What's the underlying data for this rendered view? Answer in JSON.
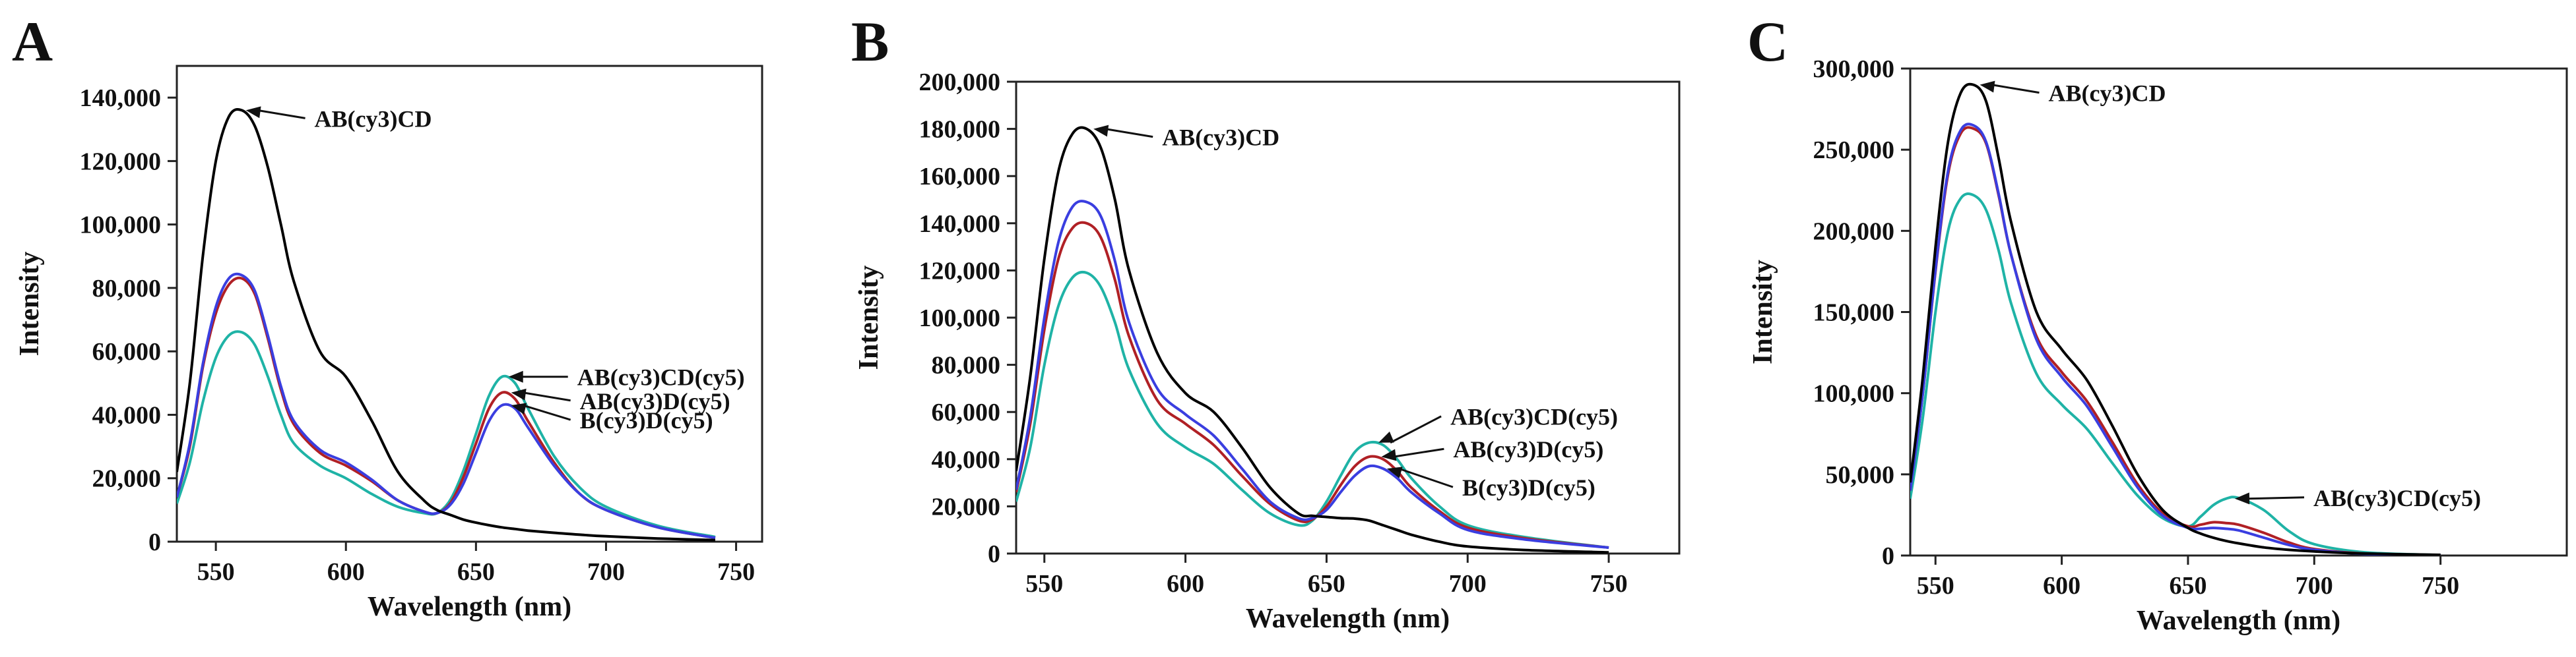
{
  "figure": {
    "panels": [
      "A",
      "B",
      "C"
    ]
  },
  "series_colors": {
    "AB(cy3)CD": "#000000",
    "AB(cy3)CD(cy5)": "#1fb3a6",
    "AB(cy3)D(cy5)": "#b02025",
    "B(cy3)D(cy5)": "#3a3ee0"
  },
  "chart_data": [
    {
      "type": "line",
      "panel": "A",
      "xlabel": "Wavelength (nm)",
      "ylabel": "Intensity",
      "xlim": [
        535,
        760
      ],
      "ylim": [
        0,
        150000
      ],
      "xticks": [
        550,
        600,
        650,
        700,
        750
      ],
      "xtick_labels": [
        "550",
        "600",
        "650",
        "700",
        "750"
      ],
      "yticks": [
        0,
        20000,
        40000,
        60000,
        80000,
        100000,
        120000,
        140000
      ],
      "ytick_labels": [
        "0",
        "20,000",
        "40,000",
        "60,000",
        "80,000",
        "100,000",
        "120,000",
        "140,000"
      ],
      "x": [
        535,
        540,
        545,
        550,
        555,
        560,
        565,
        570,
        575,
        580,
        590,
        600,
        610,
        620,
        630,
        635,
        640,
        645,
        650,
        655,
        660,
        665,
        670,
        680,
        690,
        700,
        720,
        742
      ],
      "series": [
        {
          "name": "AB(cy3)CD",
          "color": "#000000",
          "values": [
            22000,
            50000,
            90000,
            120000,
            134000,
            136000,
            131000,
            118000,
            100000,
            82000,
            60000,
            52000,
            38000,
            22000,
            13000,
            10000,
            8500,
            7000,
            6000,
            5200,
            4500,
            4000,
            3500,
            2800,
            2200,
            1700,
            1000,
            500
          ]
        },
        {
          "name": "AB(cy3)CD(cy5)",
          "color": "#1fb3a6",
          "values": [
            12000,
            25000,
            44000,
            58000,
            65000,
            66000,
            62000,
            52000,
            40000,
            31000,
            24000,
            20000,
            15000,
            11000,
            9000,
            9000,
            13000,
            22000,
            34000,
            46000,
            52000,
            50000,
            42000,
            27000,
            17000,
            11000,
            5000,
            1500
          ]
        },
        {
          "name": "AB(cy3)D(cy5)",
          "color": "#b02025",
          "values": [
            14000,
            30000,
            55000,
            72000,
            81000,
            83000,
            78000,
            64000,
            48000,
            37000,
            28000,
            24000,
            19000,
            13000,
            9500,
            9000,
            12000,
            20000,
            31000,
            42000,
            47000,
            45000,
            38000,
            25000,
            15000,
            10000,
            4500,
            1200
          ]
        },
        {
          "name": "B(cy3)D(cy5)",
          "color": "#3a3ee0",
          "values": [
            14000,
            31000,
            56000,
            74000,
            83000,
            84000,
            79000,
            65000,
            49000,
            38000,
            29000,
            25000,
            19500,
            13000,
            9500,
            9000,
            11500,
            18000,
            28000,
            38000,
            43000,
            42000,
            36000,
            24000,
            15000,
            10000,
            4500,
            1200
          ]
        }
      ],
      "annotations": [
        {
          "series": "AB(cy3)CD",
          "text": "AB(cy3)CD",
          "x": 560,
          "y": 136000
        },
        {
          "series": "AB(cy3)CD(cy5)",
          "text": "AB(cy3)CD(cy5)",
          "x": 661,
          "y": 52000
        },
        {
          "series": "AB(cy3)D(cy5)",
          "text": "AB(cy3)D(cy5)",
          "x": 662,
          "y": 47000
        },
        {
          "series": "B(cy3)D(cy5)",
          "text": "B(cy3)D(cy5)",
          "x": 662,
          "y": 43000
        }
      ]
    },
    {
      "type": "line",
      "panel": "B",
      "xlabel": "Wavelength (nm)",
      "ylabel": "Intensity",
      "xlim": [
        540,
        775
      ],
      "ylim": [
        0,
        200000
      ],
      "xticks": [
        550,
        600,
        650,
        700,
        750
      ],
      "xtick_labels": [
        "550",
        "600",
        "650",
        "700",
        "750"
      ],
      "yticks": [
        0,
        20000,
        40000,
        60000,
        80000,
        100000,
        120000,
        140000,
        160000,
        180000,
        200000
      ],
      "ytick_labels": [
        "0",
        "20,000",
        "40,000",
        "60,000",
        "80,000",
        "100,000",
        "120,000",
        "140,000",
        "160,000",
        "180,000",
        "200,000"
      ],
      "x": [
        540,
        545,
        550,
        555,
        560,
        565,
        570,
        575,
        580,
        590,
        600,
        610,
        620,
        630,
        640,
        645,
        650,
        655,
        660,
        665,
        670,
        675,
        680,
        690,
        700,
        720,
        750
      ],
      "series": [
        {
          "name": "AB(cy3)CD",
          "color": "#000000",
          "values": [
            35000,
            75000,
            125000,
            162000,
            178000,
            180000,
            172000,
            150000,
            120000,
            85000,
            68000,
            60000,
            45000,
            28000,
            17000,
            16000,
            15500,
            15000,
            14800,
            14000,
            12000,
            10000,
            8000,
            5000,
            3000,
            1500,
            500
          ]
        },
        {
          "name": "AB(cy3)CD(cy5)",
          "color": "#1fb3a6",
          "values": [
            22000,
            45000,
            80000,
            105000,
            117000,
            119000,
            113000,
            98000,
            78000,
            55000,
            45000,
            38000,
            27000,
            17000,
            12000,
            14000,
            22000,
            33000,
            43000,
            47000,
            46000,
            40000,
            32000,
            20000,
            12000,
            7000,
            2500
          ]
        },
        {
          "name": "AB(cy3)D(cy5)",
          "color": "#b02025",
          "values": [
            26000,
            55000,
            95000,
            125000,
            138000,
            140000,
            134000,
            116000,
            92000,
            65000,
            55000,
            46000,
            33000,
            21000,
            14000,
            14500,
            20000,
            29000,
            37000,
            41000,
            40000,
            35000,
            28000,
            18000,
            11000,
            6500,
            2500
          ]
        },
        {
          "name": "B(cy3)D(cy5)",
          "color": "#3a3ee0",
          "values": [
            27000,
            58000,
            100000,
            132000,
            147000,
            149000,
            143000,
            124000,
            98000,
            70000,
            59000,
            50000,
            36000,
            22000,
            15000,
            15000,
            18500,
            26000,
            33000,
            37000,
            36000,
            32000,
            26000,
            17000,
            10000,
            6000,
            2500
          ]
        }
      ],
      "annotations": [
        {
          "series": "AB(cy3)CD",
          "text": "AB(cy3)CD",
          "x": 566,
          "y": 180000
        },
        {
          "series": "AB(cy3)CD(cy5)",
          "text": "AB(cy3)CD(cy5)",
          "x": 667,
          "y": 47000
        },
        {
          "series": "AB(cy3)D(cy5)",
          "text": "AB(cy3)D(cy5)",
          "x": 668,
          "y": 41000
        },
        {
          "series": "B(cy3)D(cy5)",
          "text": "B(cy3)D(cy5)",
          "x": 670,
          "y": 36000
        }
      ]
    },
    {
      "type": "line",
      "panel": "C",
      "xlabel": "Wavelength (nm)",
      "ylabel": "Intensity",
      "xlim": [
        540,
        800
      ],
      "ylim": [
        0,
        300000
      ],
      "xticks": [
        550,
        600,
        650,
        700,
        750
      ],
      "xtick_labels": [
        "550",
        "600",
        "650",
        "700",
        "750"
      ],
      "yticks": [
        0,
        50000,
        100000,
        150000,
        200000,
        250000,
        300000
      ],
      "ytick_labels": [
        "0",
        "50,000",
        "100,000",
        "150,000",
        "200,000",
        "250,000",
        "300,000"
      ],
      "x": [
        540,
        545,
        550,
        555,
        560,
        565,
        570,
        575,
        580,
        590,
        600,
        610,
        620,
        630,
        640,
        650,
        655,
        660,
        665,
        670,
        680,
        690,
        700,
        720,
        750
      ],
      "series": [
        {
          "name": "AB(cy3)CD",
          "color": "#000000",
          "values": [
            45000,
            110000,
            190000,
            255000,
            285000,
            290000,
            280000,
            245000,
            205000,
            150000,
            127000,
            108000,
            80000,
            50000,
            28000,
            17000,
            13500,
            11000,
            9000,
            7500,
            5000,
            3500,
            2500,
            1200,
            400
          ]
        },
        {
          "name": "AB(cy3)CD(cy5)",
          "color": "#1fb3a6",
          "values": [
            35000,
            85000,
            150000,
            200000,
            220000,
            222000,
            213000,
            188000,
            155000,
            112000,
            93000,
            78000,
            57000,
            37000,
            23000,
            18000,
            24000,
            31000,
            35000,
            35500,
            28000,
            15000,
            7000,
            2000,
            300
          ]
        },
        {
          "name": "AB(cy3)D(cy5)",
          "color": "#b02025",
          "values": [
            40000,
            100000,
            175000,
            235000,
            260000,
            263000,
            254000,
            222000,
            185000,
            135000,
            113000,
            95000,
            70000,
            44000,
            26000,
            18000,
            19000,
            20500,
            20000,
            19000,
            14000,
            8000,
            4000,
            1200,
            200
          ]
        },
        {
          "name": "B(cy3)D(cy5)",
          "color": "#3a3ee0",
          "values": [
            40000,
            100000,
            176000,
            237000,
            262000,
            265000,
            255000,
            223000,
            185000,
            133000,
            110000,
            92000,
            67000,
            42000,
            24500,
            17000,
            16500,
            17000,
            16500,
            15500,
            11000,
            6500,
            3500,
            1000,
            200
          ]
        }
      ],
      "annotations": [
        {
          "series": "AB(cy3)CD",
          "text": "AB(cy3)CD",
          "x": 566,
          "y": 290000
        },
        {
          "series": "AB(cy3)CD(cy5)",
          "text": "AB(cy3)CD(cy5)",
          "x": 667,
          "y": 35000
        }
      ]
    }
  ]
}
